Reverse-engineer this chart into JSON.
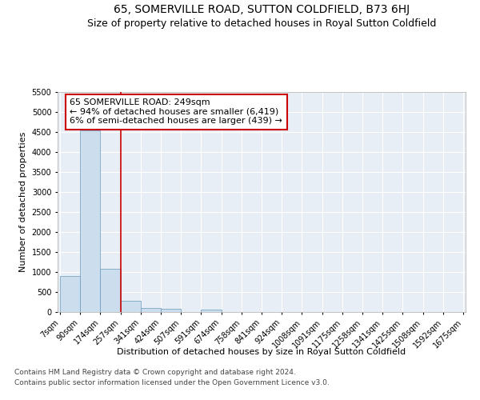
{
  "title": "65, SOMERVILLE ROAD, SUTTON COLDFIELD, B73 6HJ",
  "subtitle": "Size of property relative to detached houses in Royal Sutton Coldfield",
  "xlabel": "Distribution of detached houses by size in Royal Sutton Coldfield",
  "ylabel": "Number of detached properties",
  "footnote1": "Contains HM Land Registry data © Crown copyright and database right 2024.",
  "footnote2": "Contains public sector information licensed under the Open Government Licence v3.0.",
  "annotation_line1": "65 SOMERVILLE ROAD: 249sqm",
  "annotation_line2": "← 94% of detached houses are smaller (6,419)",
  "annotation_line3": "6% of semi-detached houses are larger (439) →",
  "bar_edges": [
    7,
    90,
    174,
    257,
    341,
    424,
    507,
    591,
    674,
    758,
    841,
    924,
    1008,
    1091,
    1175,
    1258,
    1341,
    1425,
    1508,
    1592,
    1675
  ],
  "bar_heights": [
    900,
    4550,
    1075,
    290,
    95,
    75,
    0,
    55,
    0,
    0,
    0,
    0,
    0,
    0,
    0,
    0,
    0,
    0,
    0,
    0
  ],
  "bar_color": "#ccdded",
  "bar_edge_color": "#6699bb",
  "vline_color": "#cc0000",
  "vline_x": 257,
  "ylim": [
    0,
    5500
  ],
  "yticks": [
    0,
    500,
    1000,
    1500,
    2000,
    2500,
    3000,
    3500,
    4000,
    4500,
    5000,
    5500
  ],
  "annotation_box_color": "#cc0000",
  "plot_bg_color": "#e8eef5",
  "grid_color": "#ffffff",
  "title_fontsize": 10,
  "subtitle_fontsize": 9,
  "axis_label_fontsize": 8,
  "tick_fontsize": 7,
  "annotation_fontsize": 8,
  "footnote_fontsize": 6.5
}
